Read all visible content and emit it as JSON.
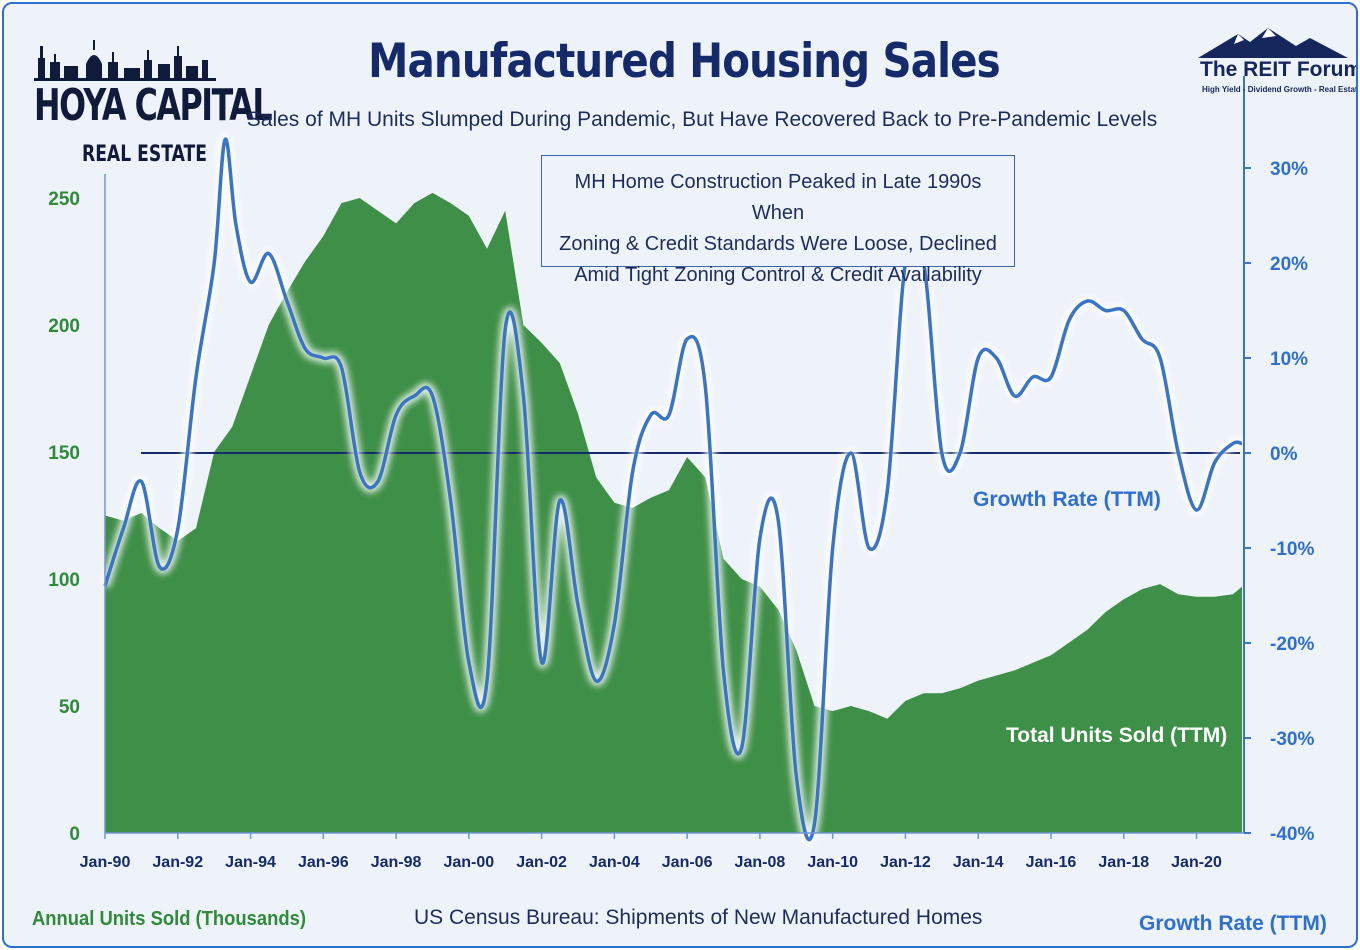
{
  "header": {
    "title": "Manufactured Housing Sales",
    "subtitle": "Sales of MH Units Slumped During Pandemic, But Have Recovered Back to Pre-Pandemic Levels"
  },
  "brand_left": {
    "line1": "HOYA CAPITAL",
    "line2": "REAL ESTATE"
  },
  "brand_right": {
    "name": "The REIT Forum",
    "tagline": "High Yield - Dividend Growth - Real Estate"
  },
  "callout": {
    "line1": "MH Home Construction Peaked in Late 1990s When",
    "line2": "Zoning & Credit Standards Were Loose, Declined",
    "line3": "Amid Tight Zoning Control & Credit Availability"
  },
  "footer": {
    "left_axis_label": "Annual Units Sold (Thousands)",
    "source": "US Census Bureau: Shipments of New Manufactured Homes",
    "right_axis_label": "Growth Rate (TTM)"
  },
  "annotations": {
    "growth": "Growth Rate (TTM)",
    "units": "Total Units Sold (TTM)"
  },
  "colors": {
    "area": "#3e8f47",
    "line": "#3a74c4",
    "navy": "#152a6b",
    "left_axis": "#2f8a3a",
    "right_axis": "#2f6fd0"
  },
  "chart_data": {
    "type": "area+line",
    "x_tick_labels": [
      "Jan-90",
      "Jan-92",
      "Jan-94",
      "Jan-96",
      "Jan-98",
      "Jan-00",
      "Jan-02",
      "Jan-04",
      "Jan-06",
      "Jan-08",
      "Jan-10",
      "Jan-12",
      "Jan-14",
      "Jan-16",
      "Jan-18",
      "Jan-20"
    ],
    "y_left": {
      "ticks": [
        0,
        50,
        100,
        150,
        200,
        250
      ],
      "range": [
        0,
        270
      ]
    },
    "y_right": {
      "ticks": [
        "-40%",
        "-30%",
        "-20%",
        "-10%",
        "0%",
        "10%",
        "20%",
        "30%"
      ],
      "tick_values": [
        -40,
        -30,
        -20,
        -10,
        0,
        10,
        20,
        30
      ],
      "range": [
        -40,
        35
      ]
    },
    "series": [
      {
        "name": "Total Units Sold (TTM)",
        "axis": "left",
        "type": "area",
        "x": [
          1990.0,
          1990.5,
          1991.0,
          1991.5,
          1992.0,
          1992.5,
          1993.0,
          1993.5,
          1994.0,
          1994.5,
          1995.0,
          1995.5,
          1996.0,
          1996.5,
          1997.0,
          1997.5,
          1998.0,
          1998.5,
          1999.0,
          1999.5,
          2000.0,
          2000.5,
          2001.0,
          2001.5,
          2002.0,
          2002.5,
          2003.0,
          2003.5,
          2004.0,
          2004.5,
          2005.0,
          2005.5,
          2006.0,
          2006.5,
          2007.0,
          2007.5,
          2008.0,
          2008.5,
          2009.0,
          2009.5,
          2010.0,
          2010.5,
          2011.0,
          2011.5,
          2012.0,
          2012.5,
          2013.0,
          2013.5,
          2014.0,
          2014.5,
          2015.0,
          2015.5,
          2016.0,
          2016.5,
          2017.0,
          2017.5,
          2018.0,
          2018.5,
          2019.0,
          2019.5,
          2020.0,
          2020.5,
          2021.0,
          2021.25
        ],
        "y": [
          125,
          123,
          126,
          120,
          115,
          120,
          150,
          160,
          180,
          200,
          213,
          225,
          235,
          248,
          250,
          245,
          240,
          248,
          252,
          248,
          243,
          230,
          245,
          200,
          193,
          185,
          165,
          140,
          130,
          128,
          132,
          135,
          148,
          140,
          108,
          100,
          97,
          88,
          72,
          50,
          48,
          50,
          48,
          45,
          52,
          55,
          55,
          57,
          60,
          62,
          64,
          67,
          70,
          75,
          80,
          87,
          92,
          96,
          98,
          94,
          93,
          93,
          94,
          97
        ]
      },
      {
        "name": "Growth Rate (TTM)",
        "axis": "right",
        "type": "line",
        "x": [
          1990.0,
          1990.5,
          1991.0,
          1991.5,
          1992.0,
          1992.5,
          1993.0,
          1993.3,
          1993.6,
          1994.0,
          1994.5,
          1995.0,
          1995.5,
          1996.0,
          1996.5,
          1997.0,
          1997.5,
          1998.0,
          1998.5,
          1999.0,
          1999.5,
          2000.0,
          2000.5,
          2001.0,
          2001.5,
          2002.0,
          2002.5,
          2003.0,
          2003.5,
          2004.0,
          2004.5,
          2005.0,
          2005.5,
          2006.0,
          2006.5,
          2007.0,
          2007.5,
          2008.0,
          2008.5,
          2009.0,
          2009.5,
          2010.0,
          2010.5,
          2011.0,
          2011.5,
          2012.0,
          2012.5,
          2013.0,
          2013.5,
          2014.0,
          2014.5,
          2015.0,
          2015.5,
          2016.0,
          2016.5,
          2017.0,
          2017.5,
          2018.0,
          2018.5,
          2019.0,
          2019.5,
          2020.0,
          2020.5,
          2021.0,
          2021.25
        ],
        "y": [
          -14,
          -8,
          -3,
          -12,
          -8,
          8,
          20,
          33,
          24,
          18,
          21,
          16,
          11,
          10,
          9,
          -2,
          -3,
          4,
          6,
          6,
          -5,
          -22,
          -24,
          13,
          6,
          -22,
          -5,
          -16,
          -24,
          -18,
          -2,
          4,
          4,
          12,
          7,
          -23,
          -31,
          -9,
          -7,
          -34,
          -39,
          -10,
          0,
          -10,
          -4,
          20,
          20,
          0,
          0,
          10,
          10,
          6,
          8,
          8,
          14,
          16,
          15,
          15,
          12,
          10,
          0,
          -6,
          -1,
          1,
          1
        ]
      }
    ]
  }
}
